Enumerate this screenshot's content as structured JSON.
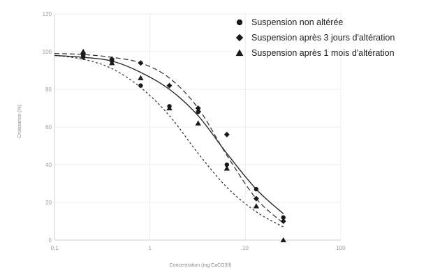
{
  "chart_data": {
    "type": "scatter",
    "xlabel": "Concentration (mg CaCO3/l)",
    "ylabel": "Croissance (%)",
    "x_scale": "log",
    "xlim": [
      0.1,
      100
    ],
    "ylim": [
      0,
      120
    ],
    "x_ticks": [
      0.1,
      1,
      10,
      100
    ],
    "x_tick_labels": [
      "0,1",
      "1",
      "10",
      "100"
    ],
    "y_ticks": [
      0,
      20,
      40,
      60,
      80,
      100,
      120
    ],
    "y_tick_labels": [
      "0",
      "20",
      "40",
      "60",
      "80",
      "100",
      "120"
    ],
    "grid": true,
    "legend_position": "top-right",
    "series": [
      {
        "name": "Suspension non altérée",
        "marker": "circle",
        "line_style": "solid",
        "x": [
          0.2,
          0.4,
          0.8,
          1.6,
          3.2,
          6.4,
          13,
          25
        ],
        "y": [
          98,
          95,
          82,
          71,
          68,
          40,
          27,
          12
        ],
        "fit_x": [
          0.1,
          0.2,
          0.4,
          0.8,
          1.6,
          3.2,
          6.4,
          13,
          25
        ],
        "fit_y": [
          98,
          97,
          95,
          89,
          80,
          66,
          46,
          27,
          14
        ]
      },
      {
        "name": "Suspension après 3 jours d'altération",
        "marker": "diamond",
        "line_style": "dashed",
        "x": [
          0.2,
          0.4,
          0.8,
          1.6,
          3.2,
          6.4,
          13,
          25
        ],
        "y": [
          97,
          96,
          94,
          82,
          70,
          56,
          22,
          10
        ],
        "fit_x": [
          0.1,
          0.2,
          0.4,
          0.8,
          1.6,
          3.2,
          6.4,
          13,
          25
        ],
        "fit_y": [
          99,
          98.5,
          97,
          94,
          86,
          70,
          45,
          22,
          9
        ]
      },
      {
        "name": "Suspension après 1 mois d'altération",
        "marker": "triangle",
        "line_style": "dotted",
        "x": [
          0.2,
          0.4,
          0.8,
          1.6,
          3.2,
          6.4,
          13,
          25
        ],
        "y": [
          100,
          94,
          86,
          70,
          62,
          38,
          18,
          0
        ],
        "fit_x": [
          0.1,
          0.2,
          0.4,
          0.8,
          1.6,
          3.2,
          6.4,
          13,
          25
        ],
        "fit_y": [
          98,
          96,
          91,
          81,
          66,
          46,
          28,
          15,
          7
        ]
      }
    ]
  },
  "colors": {
    "markers": "#1a1a1a",
    "grid": "#ececec",
    "axis": "#cfcfcf",
    "tick_text": "#9a9a9a"
  }
}
